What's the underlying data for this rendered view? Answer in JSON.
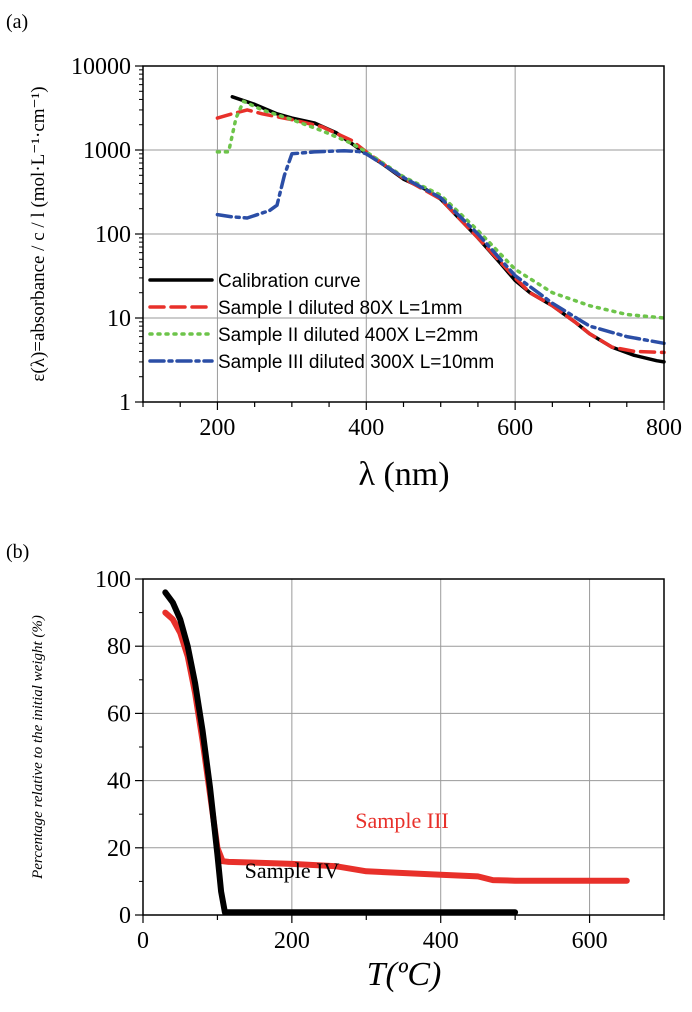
{
  "chart_data": [
    {
      "panel_label": "(a)",
      "type": "line",
      "xlabel": "λ (nm)",
      "ylabel": "ε(λ)=absorbance / c / l (mol·L⁻¹·cm⁻¹)",
      "xlim": [
        100,
        800
      ],
      "ylim": [
        1,
        10000
      ],
      "yscale": "log",
      "xticks": [
        200,
        400,
        600,
        800
      ],
      "yticks": [
        1,
        10,
        100,
        1000,
        10000
      ],
      "ytick_labels": [
        "1",
        "10",
        "100",
        "1000",
        "10000"
      ],
      "grid": true,
      "legend": "bottom-left",
      "series": [
        {
          "name": "Calibration curve",
          "color": "#000000",
          "style": "solid",
          "x": [
            220,
            250,
            280,
            300,
            330,
            360,
            380,
            400,
            420,
            450,
            480,
            500,
            520,
            550,
            580,
            600,
            620,
            650,
            680,
            700,
            730,
            760,
            790,
            800
          ],
          "y": [
            4300,
            3500,
            2700,
            2400,
            2100,
            1600,
            1200,
            900,
            700,
            450,
            340,
            260,
            170,
            90,
            45,
            28,
            20,
            14,
            9,
            6.5,
            4.5,
            3.6,
            3.1,
            3.0
          ]
        },
        {
          "name": "Sample I diluted 80X L=1mm",
          "color": "#e8302a",
          "style": "dashed",
          "x": [
            200,
            220,
            240,
            260,
            300,
            340,
            380,
            400,
            450,
            500,
            550,
            600,
            620,
            650,
            680,
            700,
            730,
            760,
            800
          ],
          "y": [
            2400,
            2700,
            3000,
            2700,
            2300,
            1900,
            1300,
            950,
            460,
            260,
            90,
            30,
            20,
            14,
            9,
            6.5,
            4.5,
            4.0,
            3.9
          ]
        },
        {
          "name": "Sample II diluted 400X L=2mm",
          "color": "#6dc44a",
          "style": "dotted",
          "x": [
            200,
            215,
            225,
            235,
            260,
            300,
            340,
            380,
            400,
            450,
            500,
            550,
            600,
            650,
            700,
            750,
            800
          ],
          "y": [
            950,
            950,
            2400,
            3800,
            3000,
            2300,
            1700,
            1200,
            950,
            480,
            290,
            110,
            38,
            20,
            14,
            11,
            10
          ]
        },
        {
          "name": "Sample III diluted 300X L=10mm",
          "color": "#2b4ea6",
          "style": "dashdot",
          "x": [
            200,
            220,
            240,
            270,
            280,
            290,
            300,
            330,
            370,
            390,
            400,
            450,
            500,
            550,
            600,
            650,
            700,
            750,
            800
          ],
          "y": [
            170,
            160,
            155,
            190,
            220,
            500,
            900,
            950,
            980,
            960,
            900,
            470,
            270,
            100,
            32,
            15,
            8,
            6,
            5
          ]
        }
      ]
    },
    {
      "panel_label": "(b)",
      "type": "line",
      "xlabel": "T(ºC)",
      "ylabel": "Percentage relative to the initial weight (%)",
      "xlim": [
        0,
        700
      ],
      "ylim": [
        0,
        100
      ],
      "xticks": [
        0,
        200,
        400,
        600
      ],
      "yticks": [
        0,
        20,
        40,
        60,
        80,
        100
      ],
      "grid": true,
      "annotations": [
        {
          "text": "Sample III",
          "color": "#e8302a"
        },
        {
          "text": "Sample IV",
          "color": "#000000"
        }
      ],
      "series": [
        {
          "label": "Sample III",
          "color": "#e8302a",
          "x": [
            30,
            40,
            50,
            60,
            70,
            80,
            90,
            100,
            107,
            115,
            150,
            200,
            260,
            300,
            400,
            450,
            470,
            500,
            600,
            650
          ],
          "y": [
            90,
            88,
            84,
            77,
            66,
            52,
            36,
            20,
            16,
            15.8,
            15.6,
            15.2,
            14.5,
            13,
            12,
            11.5,
            10.4,
            10.2,
            10.2,
            10.2
          ]
        },
        {
          "label": "Sample IV",
          "color": "#000000",
          "x": [
            30,
            40,
            50,
            60,
            70,
            80,
            90,
            100,
            105,
            110,
            150,
            200,
            300,
            400,
            500
          ],
          "y": [
            96,
            93,
            88,
            80,
            69,
            55,
            38,
            18,
            7,
            0.8,
            0.8,
            0.8,
            0.8,
            0.8,
            0.8
          ]
        }
      ]
    }
  ]
}
